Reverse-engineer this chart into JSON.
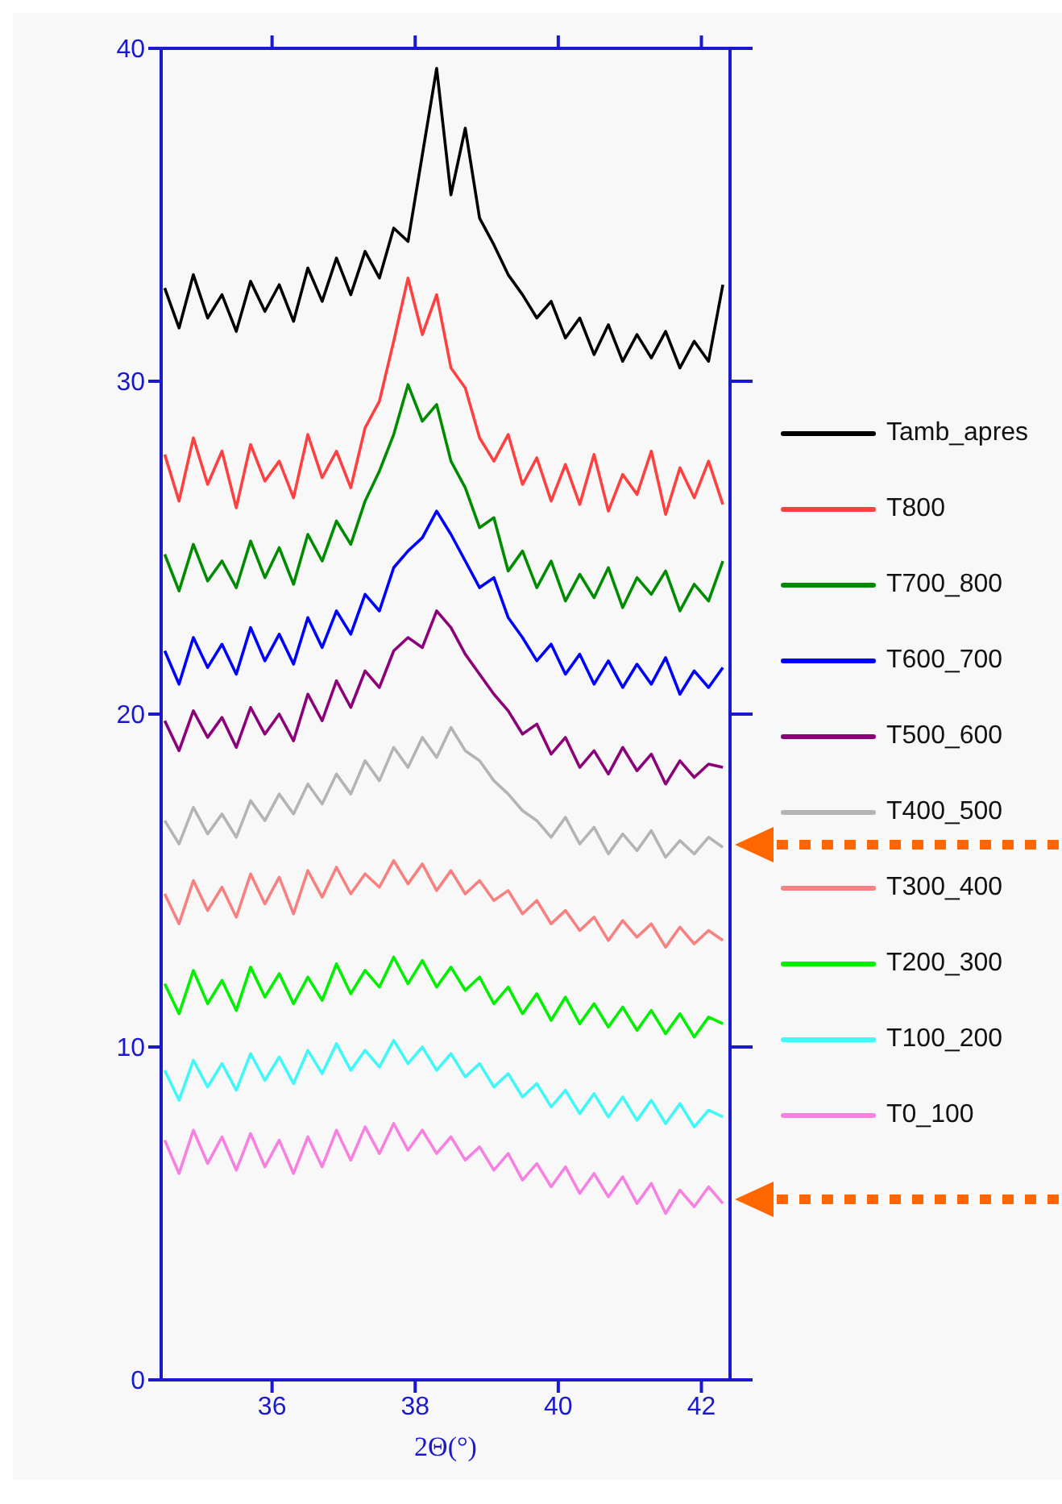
{
  "chart_data": {
    "type": "line",
    "xlabel": "2Θ(°)",
    "xlim": [
      34.45,
      42.4
    ],
    "xticks": [
      36,
      38,
      40,
      42
    ],
    "ylim": [
      0,
      40
    ],
    "yticks": [
      0,
      10,
      20,
      30,
      40
    ],
    "grid": false,
    "legend": "right",
    "marker": "none",
    "line_style": "solid",
    "x": [
      34.5,
      34.7,
      34.9,
      35.1,
      35.3,
      35.5,
      35.7,
      35.9,
      36.1,
      36.3,
      36.5,
      36.7,
      36.9,
      37.1,
      37.3,
      37.5,
      37.7,
      37.9,
      38.1,
      38.3,
      38.5,
      38.7,
      38.9,
      39.1,
      39.3,
      39.5,
      39.7,
      39.9,
      40.1,
      40.3,
      40.5,
      40.7,
      40.9,
      41.1,
      41.3,
      41.5,
      41.7,
      41.9,
      42.1,
      42.3
    ],
    "series": [
      {
        "name": "Tamb_apres",
        "color": "#000000",
        "values": [
          32.8,
          31.6,
          33.2,
          31.9,
          32.6,
          31.5,
          33.0,
          32.1,
          32.9,
          31.8,
          33.4,
          32.4,
          33.7,
          32.6,
          33.9,
          33.1,
          34.6,
          34.2,
          36.8,
          39.4,
          35.6,
          37.6,
          34.9,
          34.1,
          33.2,
          32.6,
          31.9,
          32.4,
          31.3,
          31.9,
          30.8,
          31.7,
          30.6,
          31.4,
          30.7,
          31.5,
          30.4,
          31.2,
          30.6,
          32.9
        ]
      },
      {
        "name": "T800",
        "color": "#ff4040",
        "values": [
          27.8,
          26.4,
          28.3,
          26.9,
          27.9,
          26.2,
          28.1,
          27.0,
          27.6,
          26.5,
          28.4,
          27.1,
          27.9,
          26.8,
          28.6,
          29.4,
          31.2,
          33.1,
          31.4,
          32.6,
          30.4,
          29.8,
          28.3,
          27.6,
          28.4,
          26.9,
          27.7,
          26.4,
          27.5,
          26.3,
          27.8,
          26.1,
          27.2,
          26.6,
          27.9,
          26.0,
          27.4,
          26.5,
          27.6,
          26.3
        ]
      },
      {
        "name": "T700_800",
        "color": "#008c00",
        "values": [
          24.8,
          23.7,
          25.1,
          24.0,
          24.6,
          23.8,
          25.2,
          24.1,
          25.0,
          23.9,
          25.4,
          24.6,
          25.8,
          25.1,
          26.4,
          27.3,
          28.4,
          29.9,
          28.8,
          29.3,
          27.6,
          26.8,
          25.6,
          25.9,
          24.3,
          24.9,
          23.8,
          24.6,
          23.4,
          24.2,
          23.5,
          24.4,
          23.2,
          24.1,
          23.6,
          24.3,
          23.1,
          23.9,
          23.4,
          24.6
        ]
      },
      {
        "name": "T600_700",
        "color": "#0000ff",
        "values": [
          21.9,
          20.9,
          22.3,
          21.4,
          22.1,
          21.2,
          22.6,
          21.6,
          22.4,
          21.5,
          22.9,
          22.0,
          23.1,
          22.4,
          23.6,
          23.1,
          24.4,
          24.9,
          25.3,
          26.1,
          25.4,
          24.6,
          23.8,
          24.1,
          22.9,
          22.3,
          21.6,
          22.1,
          21.2,
          21.8,
          20.9,
          21.6,
          20.8,
          21.5,
          20.9,
          21.7,
          20.6,
          21.3,
          20.8,
          21.4
        ]
      },
      {
        "name": "T500_600",
        "color": "#8c007a",
        "values": [
          19.8,
          18.9,
          20.1,
          19.3,
          19.9,
          19.0,
          20.2,
          19.4,
          20.0,
          19.2,
          20.6,
          19.8,
          21.0,
          20.2,
          21.3,
          20.8,
          21.9,
          22.3,
          22.0,
          23.1,
          22.6,
          21.8,
          21.2,
          20.6,
          20.1,
          19.4,
          19.7,
          18.8,
          19.3,
          18.4,
          18.9,
          18.2,
          19.0,
          18.3,
          18.8,
          17.9,
          18.6,
          18.1,
          18.5,
          18.4
        ]
      },
      {
        "name": "T400_500",
        "color": "#b4b4b4",
        "values": [
          16.8,
          16.1,
          17.2,
          16.4,
          17.0,
          16.3,
          17.4,
          16.8,
          17.6,
          17.0,
          17.9,
          17.3,
          18.2,
          17.6,
          18.6,
          18.0,
          19.0,
          18.4,
          19.3,
          18.7,
          19.6,
          18.9,
          18.6,
          18.0,
          17.6,
          17.1,
          16.8,
          16.3,
          16.9,
          16.1,
          16.6,
          15.8,
          16.4,
          15.9,
          16.5,
          15.7,
          16.2,
          15.8,
          16.3,
          16.0
        ]
      },
      {
        "name": "T300_400",
        "color": "#f88080",
        "values": [
          14.6,
          13.7,
          15.0,
          14.1,
          14.8,
          13.9,
          15.2,
          14.3,
          15.1,
          14.0,
          15.3,
          14.5,
          15.4,
          14.6,
          15.2,
          14.8,
          15.6,
          14.9,
          15.5,
          14.7,
          15.3,
          14.6,
          15.0,
          14.4,
          14.7,
          14.0,
          14.4,
          13.7,
          14.1,
          13.5,
          13.9,
          13.2,
          13.8,
          13.3,
          13.7,
          13.0,
          13.6,
          13.1,
          13.5,
          13.2
        ]
      },
      {
        "name": "T200_300",
        "color": "#00f000",
        "values": [
          11.9,
          11.0,
          12.3,
          11.3,
          12.0,
          11.1,
          12.4,
          11.5,
          12.2,
          11.3,
          12.1,
          11.4,
          12.5,
          11.6,
          12.3,
          11.8,
          12.7,
          11.9,
          12.6,
          11.8,
          12.4,
          11.7,
          12.1,
          11.3,
          11.8,
          11.0,
          11.6,
          10.8,
          11.5,
          10.7,
          11.3,
          10.6,
          11.2,
          10.5,
          11.1,
          10.4,
          11.0,
          10.3,
          10.9,
          10.7
        ]
      },
      {
        "name": "T100_200",
        "color": "#40f8f8",
        "values": [
          9.3,
          8.4,
          9.6,
          8.8,
          9.5,
          8.7,
          9.8,
          9.0,
          9.7,
          8.9,
          9.9,
          9.2,
          10.1,
          9.3,
          9.9,
          9.4,
          10.2,
          9.5,
          10.0,
          9.3,
          9.8,
          9.1,
          9.5,
          8.8,
          9.2,
          8.5,
          8.9,
          8.2,
          8.7,
          8.0,
          8.6,
          7.9,
          8.5,
          7.8,
          8.4,
          7.7,
          8.3,
          7.6,
          8.1,
          7.9
        ]
      },
      {
        "name": "T0_100",
        "color": "#f880e0",
        "values": [
          7.2,
          6.2,
          7.5,
          6.5,
          7.3,
          6.3,
          7.4,
          6.4,
          7.2,
          6.2,
          7.3,
          6.4,
          7.5,
          6.6,
          7.6,
          6.8,
          7.7,
          6.9,
          7.5,
          6.8,
          7.3,
          6.6,
          7.0,
          6.3,
          6.8,
          6.0,
          6.5,
          5.8,
          6.4,
          5.6,
          6.2,
          5.5,
          6.1,
          5.3,
          5.9,
          5.0,
          5.7,
          5.2,
          5.8,
          5.3
        ]
      }
    ]
  }
}
